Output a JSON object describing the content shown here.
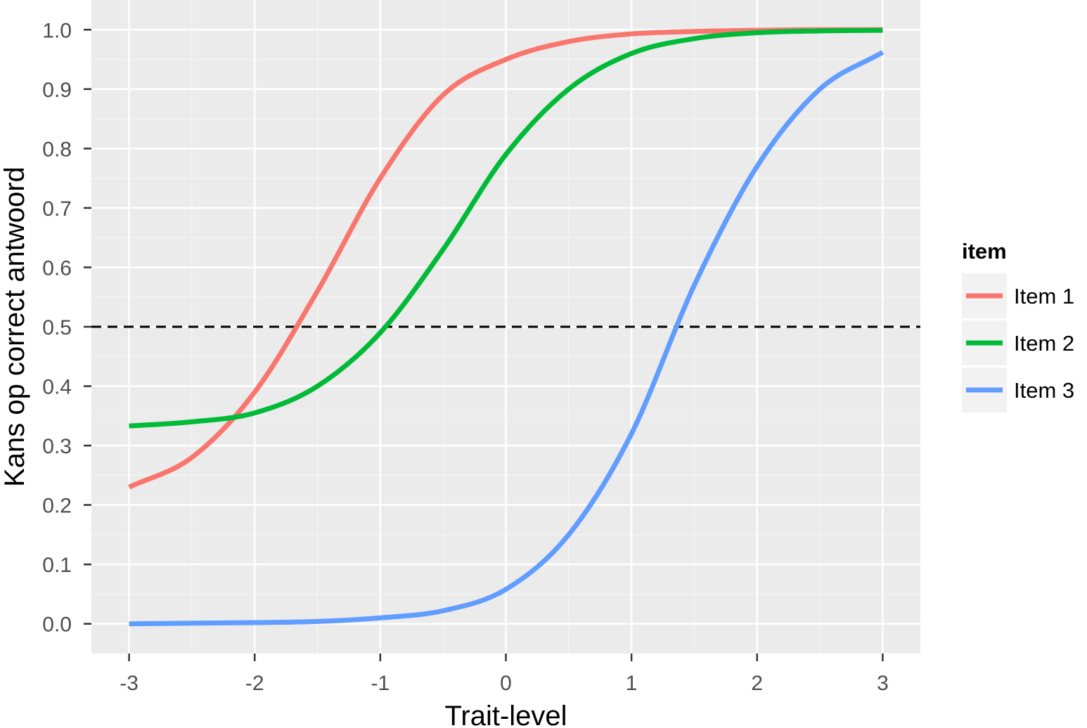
{
  "chart_data": {
    "type": "line",
    "title": "",
    "xlabel": "Trait-level",
    "ylabel": "Kans op correct antwoord",
    "xlim": [
      -3.3,
      3.3
    ],
    "ylim": [
      -0.05,
      1.05
    ],
    "x_ticks": [
      -3,
      -2,
      -1,
      0,
      1,
      2,
      3
    ],
    "x_tick_labels": [
      "-3",
      "-2",
      "-1",
      "0",
      "1",
      "2",
      "3"
    ],
    "y_ticks": [
      0.0,
      0.1,
      0.2,
      0.3,
      0.4,
      0.5,
      0.6,
      0.7,
      0.8,
      0.9,
      1.0
    ],
    "y_tick_labels": [
      "0.0",
      "0.1",
      "0.2",
      "0.3",
      "0.4",
      "0.5",
      "0.6",
      "0.7",
      "0.8",
      "0.9",
      "1.0"
    ],
    "grid": true,
    "legend": {
      "title": "item",
      "position": "right"
    },
    "reference_line": {
      "y": 0.5,
      "style": "dashed",
      "color": "#000000"
    },
    "x": [
      -3,
      -2.5,
      -2,
      -1.5,
      -1,
      -0.5,
      0,
      0.5,
      1,
      1.5,
      2,
      2.5,
      3
    ],
    "series": [
      {
        "name": "Item 1",
        "color": "#F8766D",
        "values": [
          0.23,
          0.28,
          0.39,
          0.56,
          0.75,
          0.89,
          0.95,
          0.98,
          0.993,
          0.997,
          0.999,
          1.0,
          1.0
        ]
      },
      {
        "name": "Item 2",
        "color": "#00BA38",
        "values": [
          0.333,
          0.34,
          0.355,
          0.4,
          0.49,
          0.63,
          0.79,
          0.9,
          0.96,
          0.985,
          0.995,
          0.998,
          0.999
        ]
      },
      {
        "name": "Item 3",
        "color": "#619CFF",
        "values": [
          0.0,
          0.001,
          0.002,
          0.004,
          0.01,
          0.022,
          0.058,
          0.15,
          0.32,
          0.57,
          0.77,
          0.9,
          0.962
        ]
      }
    ]
  }
}
